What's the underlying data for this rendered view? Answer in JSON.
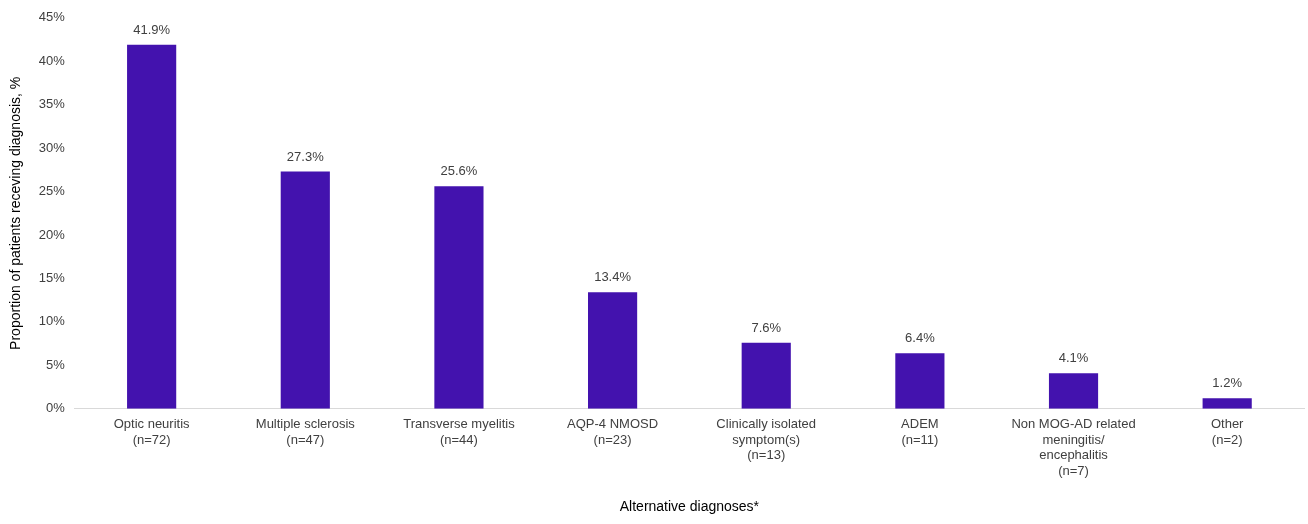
{
  "chart_data": {
    "type": "bar",
    "xlabel": "Alternative diagnoses*",
    "ylabel": "Proportion of patients receving diagnosis, %",
    "categories": [
      "Optic neuritis\n(n=72)",
      "Multiple sclerosis\n(n=47)",
      "Transverse myelitis\n(n=44)",
      "AQP-4 NMOSD\n(n=23)",
      "Clinically isolated\nsymptom(s)\n(n=13)",
      "ADEM\n(n=11)",
      "Non MOG-AD related\nmeningitis/\nencephalitis\n(n=7)",
      "Other\n(n=2)"
    ],
    "values": [
      41.9,
      27.3,
      25.6,
      13.4,
      7.6,
      6.4,
      4.1,
      1.2
    ],
    "value_labels": [
      "41.9%",
      "27.3%",
      "25.6%",
      "13.4%",
      "7.6%",
      "6.4%",
      "4.1%",
      "1.2%"
    ],
    "color": "#4312ae",
    "ylim": [
      0,
      45
    ],
    "yticks": [
      {
        "value": 0,
        "label": "0%"
      },
      {
        "value": 5,
        "label": "5%"
      },
      {
        "value": 10,
        "label": "10%"
      },
      {
        "value": 15,
        "label": "15%"
      },
      {
        "value": 20,
        "label": "20%"
      },
      {
        "value": 25,
        "label": "25%"
      },
      {
        "value": 30,
        "label": "30%"
      },
      {
        "value": 35,
        "label": "35%"
      },
      {
        "value": 40,
        "label": "40%"
      },
      {
        "value": 45,
        "label": "45%"
      }
    ],
    "grid": false,
    "legend": false
  }
}
